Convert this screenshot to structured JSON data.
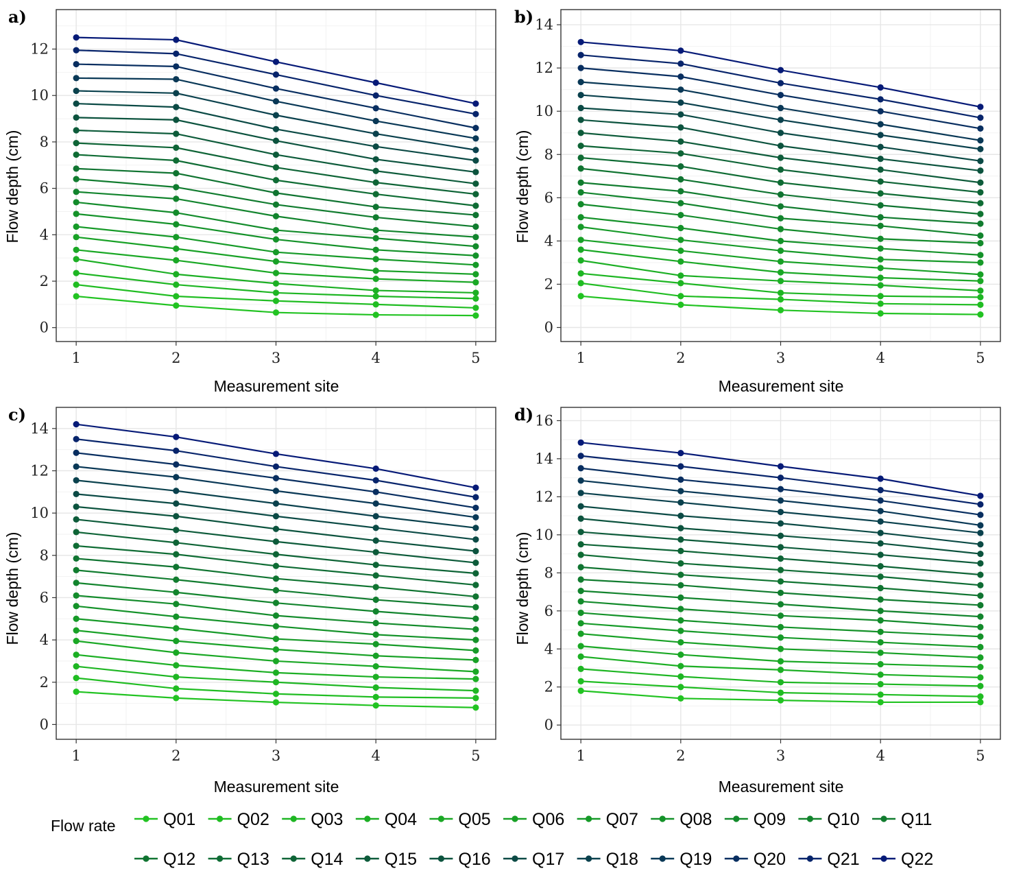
{
  "legend": {
    "title": "Flow rate"
  },
  "colors": {
    "series": [
      "#22c322",
      "#20bd22",
      "#1eb623",
      "#1caf24",
      "#1aa825",
      "#18a126",
      "#169a28",
      "#149229",
      "#138b2b",
      "#12842d",
      "#117c2f",
      "#107431",
      "#0f6c34",
      "#0e6436",
      "#0d5b3a",
      "#0c533e",
      "#0b4a45",
      "#0a414d",
      "#093856",
      "#082e60",
      "#07246b",
      "#061a77"
    ]
  },
  "chart_data": [
    {
      "panel": "a)",
      "type": "line",
      "xlabel": "Measurement site",
      "ylabel": "Flow depth (cm)",
      "x": [
        1,
        2,
        3,
        4,
        5
      ],
      "xlim": [
        0.8,
        5.2
      ],
      "ylim": [
        -0.6,
        13.7
      ],
      "yticks": [
        0,
        2,
        4,
        6,
        8,
        10,
        12
      ],
      "grid": true,
      "series": [
        {
          "name": "Q01",
          "values": [
            1.35,
            0.95,
            0.65,
            0.55,
            0.52
          ]
        },
        {
          "name": "Q02",
          "values": [
            1.85,
            1.35,
            1.15,
            1.0,
            0.85
          ]
        },
        {
          "name": "Q03",
          "values": [
            2.35,
            1.85,
            1.5,
            1.35,
            1.25
          ]
        },
        {
          "name": "Q04",
          "values": [
            2.95,
            2.3,
            1.9,
            1.6,
            1.5
          ]
        },
        {
          "name": "Q05",
          "values": [
            3.35,
            2.9,
            2.35,
            2.1,
            1.95
          ]
        },
        {
          "name": "Q06",
          "values": [
            3.9,
            3.4,
            2.85,
            2.45,
            2.3
          ]
        },
        {
          "name": "Q07",
          "values": [
            4.35,
            3.9,
            3.25,
            2.95,
            2.7
          ]
        },
        {
          "name": "Q08",
          "values": [
            4.9,
            4.45,
            3.8,
            3.35,
            3.1
          ]
        },
        {
          "name": "Q09",
          "values": [
            5.4,
            4.95,
            4.2,
            3.85,
            3.5
          ]
        },
        {
          "name": "Q10",
          "values": [
            5.85,
            5.55,
            4.8,
            4.2,
            3.9
          ]
        },
        {
          "name": "Q11",
          "values": [
            6.4,
            6.05,
            5.3,
            4.75,
            4.35
          ]
        },
        {
          "name": "Q12",
          "values": [
            6.85,
            6.65,
            5.8,
            5.2,
            4.85
          ]
        },
        {
          "name": "Q13",
          "values": [
            7.45,
            7.2,
            6.35,
            5.75,
            5.25
          ]
        },
        {
          "name": "Q14",
          "values": [
            7.95,
            7.75,
            6.9,
            6.25,
            5.75
          ]
        },
        {
          "name": "Q15",
          "values": [
            8.5,
            8.35,
            7.45,
            6.75,
            6.2
          ]
        },
        {
          "name": "Q16",
          "values": [
            9.05,
            8.95,
            8.05,
            7.25,
            6.7
          ]
        },
        {
          "name": "Q17",
          "values": [
            9.65,
            9.5,
            8.55,
            7.8,
            7.2
          ]
        },
        {
          "name": "Q18",
          "values": [
            10.2,
            10.1,
            9.15,
            8.35,
            7.65
          ]
        },
        {
          "name": "Q19",
          "values": [
            10.75,
            10.7,
            9.75,
            8.9,
            8.15
          ]
        },
        {
          "name": "Q20",
          "values": [
            11.35,
            11.25,
            10.3,
            9.45,
            8.6
          ]
        },
        {
          "name": "Q21",
          "values": [
            11.95,
            11.8,
            10.9,
            10.0,
            9.2
          ]
        },
        {
          "name": "Q22",
          "values": [
            12.5,
            12.4,
            11.45,
            10.55,
            9.65
          ]
        }
      ]
    },
    {
      "panel": "b)",
      "type": "line",
      "xlabel": "Measurement site",
      "ylabel": "Flow depth (cm)",
      "x": [
        1,
        2,
        3,
        4,
        5
      ],
      "xlim": [
        0.8,
        5.2
      ],
      "ylim": [
        -0.65,
        14.7
      ],
      "yticks": [
        0,
        2,
        4,
        6,
        8,
        10,
        12,
        14
      ],
      "grid": true,
      "series": [
        {
          "name": "Q01",
          "values": [
            1.45,
            1.05,
            0.8,
            0.65,
            0.6
          ]
        },
        {
          "name": "Q02",
          "values": [
            2.05,
            1.45,
            1.3,
            1.1,
            1.05
          ]
        },
        {
          "name": "Q03",
          "values": [
            2.5,
            2.05,
            1.6,
            1.45,
            1.4
          ]
        },
        {
          "name": "Q04",
          "values": [
            3.1,
            2.4,
            2.15,
            1.95,
            1.7
          ]
        },
        {
          "name": "Q05",
          "values": [
            3.6,
            3.05,
            2.55,
            2.3,
            2.15
          ]
        },
        {
          "name": "Q06",
          "values": [
            4.05,
            3.55,
            3.05,
            2.75,
            2.45
          ]
        },
        {
          "name": "Q07",
          "values": [
            4.65,
            4.05,
            3.55,
            3.15,
            3.0
          ]
        },
        {
          "name": "Q08",
          "values": [
            5.1,
            4.6,
            4.0,
            3.65,
            3.35
          ]
        },
        {
          "name": "Q09",
          "values": [
            5.7,
            5.2,
            4.55,
            4.1,
            3.9
          ]
        },
        {
          "name": "Q10",
          "values": [
            6.25,
            5.75,
            5.05,
            4.7,
            4.25
          ]
        },
        {
          "name": "Q11",
          "values": [
            6.7,
            6.3,
            5.6,
            5.1,
            4.8
          ]
        },
        {
          "name": "Q12",
          "values": [
            7.35,
            6.85,
            6.15,
            5.65,
            5.25
          ]
        },
        {
          "name": "Q13",
          "values": [
            7.85,
            7.45,
            6.7,
            6.2,
            5.75
          ]
        },
        {
          "name": "Q14",
          "values": [
            8.4,
            8.05,
            7.3,
            6.75,
            6.25
          ]
        },
        {
          "name": "Q15",
          "values": [
            9.0,
            8.6,
            7.85,
            7.3,
            6.7
          ]
        },
        {
          "name": "Q16",
          "values": [
            9.6,
            9.25,
            8.4,
            7.8,
            7.25
          ]
        },
        {
          "name": "Q17",
          "values": [
            10.15,
            9.85,
            9.0,
            8.35,
            7.7
          ]
        },
        {
          "name": "Q18",
          "values": [
            10.75,
            10.4,
            9.6,
            8.9,
            8.25
          ]
        },
        {
          "name": "Q19",
          "values": [
            11.35,
            11.0,
            10.15,
            9.4,
            8.65
          ]
        },
        {
          "name": "Q20",
          "values": [
            12.0,
            11.6,
            10.75,
            10.0,
            9.2
          ]
        },
        {
          "name": "Q21",
          "values": [
            12.6,
            12.2,
            11.3,
            10.55,
            9.7
          ]
        },
        {
          "name": "Q22",
          "values": [
            13.2,
            12.8,
            11.9,
            11.1,
            10.2
          ]
        }
      ]
    },
    {
      "panel": "c)",
      "type": "line",
      "xlabel": "Measurement site",
      "ylabel": "Flow depth (cm)",
      "x": [
        1,
        2,
        3,
        4,
        5
      ],
      "xlim": [
        0.8,
        5.2
      ],
      "ylim": [
        -0.7,
        15.0
      ],
      "yticks": [
        0,
        2,
        4,
        6,
        8,
        10,
        12,
        14
      ],
      "grid": true,
      "series": [
        {
          "name": "Q01",
          "values": [
            1.55,
            1.25,
            1.05,
            0.9,
            0.8
          ]
        },
        {
          "name": "Q02",
          "values": [
            2.2,
            1.7,
            1.45,
            1.3,
            1.25
          ]
        },
        {
          "name": "Q03",
          "values": [
            2.75,
            2.25,
            2.0,
            1.75,
            1.6
          ]
        },
        {
          "name": "Q04",
          "values": [
            3.3,
            2.8,
            2.45,
            2.25,
            2.15
          ]
        },
        {
          "name": "Q05",
          "values": [
            3.95,
            3.4,
            3.0,
            2.75,
            2.5
          ]
        },
        {
          "name": "Q06",
          "values": [
            4.45,
            3.95,
            3.55,
            3.25,
            3.05
          ]
        },
        {
          "name": "Q07",
          "values": [
            5.0,
            4.55,
            4.05,
            3.8,
            3.5
          ]
        },
        {
          "name": "Q08",
          "values": [
            5.6,
            5.1,
            4.65,
            4.25,
            4.0
          ]
        },
        {
          "name": "Q09",
          "values": [
            6.1,
            5.7,
            5.15,
            4.8,
            4.5
          ]
        },
        {
          "name": "Q10",
          "values": [
            6.7,
            6.25,
            5.75,
            5.35,
            5.0
          ]
        },
        {
          "name": "Q11",
          "values": [
            7.3,
            6.85,
            6.35,
            5.9,
            5.55
          ]
        },
        {
          "name": "Q12",
          "values": [
            7.85,
            7.45,
            6.9,
            6.5,
            6.05
          ]
        },
        {
          "name": "Q13",
          "values": [
            8.45,
            8.05,
            7.5,
            7.05,
            6.6
          ]
        },
        {
          "name": "Q14",
          "values": [
            9.1,
            8.6,
            8.05,
            7.55,
            7.15
          ]
        },
        {
          "name": "Q15",
          "values": [
            9.7,
            9.2,
            8.65,
            8.15,
            7.65
          ]
        },
        {
          "name": "Q16",
          "values": [
            10.3,
            9.85,
            9.25,
            8.7,
            8.2
          ]
        },
        {
          "name": "Q17",
          "values": [
            10.9,
            10.45,
            9.85,
            9.3,
            8.75
          ]
        },
        {
          "name": "Q18",
          "values": [
            11.55,
            11.05,
            10.45,
            9.85,
            9.3
          ]
        },
        {
          "name": "Q19",
          "values": [
            12.2,
            11.7,
            11.05,
            10.45,
            9.8
          ]
        },
        {
          "name": "Q20",
          "values": [
            12.85,
            12.3,
            11.65,
            11.0,
            10.25
          ]
        },
        {
          "name": "Q21",
          "values": [
            13.5,
            12.95,
            12.2,
            11.55,
            10.75
          ]
        },
        {
          "name": "Q22",
          "values": [
            14.2,
            13.6,
            12.8,
            12.1,
            11.2
          ]
        }
      ]
    },
    {
      "panel": "d)",
      "type": "line",
      "xlabel": "Measurement site",
      "ylabel": "Flow depth (cm)",
      "x": [
        1,
        2,
        3,
        4,
        5
      ],
      "xlim": [
        0.8,
        5.2
      ],
      "ylim": [
        -0.75,
        16.7
      ],
      "yticks": [
        0,
        2,
        4,
        6,
        8,
        10,
        12,
        14,
        16
      ],
      "grid": true,
      "series": [
        {
          "name": "Q01",
          "values": [
            1.8,
            1.4,
            1.3,
            1.2,
            1.2
          ]
        },
        {
          "name": "Q02",
          "values": [
            2.3,
            2.0,
            1.7,
            1.6,
            1.5
          ]
        },
        {
          "name": "Q03",
          "values": [
            2.95,
            2.55,
            2.25,
            2.15,
            2.05
          ]
        },
        {
          "name": "Q04",
          "values": [
            3.6,
            3.1,
            2.9,
            2.65,
            2.5
          ]
        },
        {
          "name": "Q05",
          "values": [
            4.15,
            3.7,
            3.35,
            3.2,
            3.05
          ]
        },
        {
          "name": "Q06",
          "values": [
            4.8,
            4.35,
            4.0,
            3.8,
            3.55
          ]
        },
        {
          "name": "Q07",
          "values": [
            5.35,
            4.95,
            4.6,
            4.35,
            4.1
          ]
        },
        {
          "name": "Q08",
          "values": [
            5.9,
            5.5,
            5.15,
            4.9,
            4.65
          ]
        },
        {
          "name": "Q09",
          "values": [
            6.5,
            6.1,
            5.75,
            5.5,
            5.15
          ]
        },
        {
          "name": "Q10",
          "values": [
            7.05,
            6.7,
            6.35,
            6.0,
            5.7
          ]
        },
        {
          "name": "Q11",
          "values": [
            7.65,
            7.35,
            6.95,
            6.6,
            6.3
          ]
        },
        {
          "name": "Q12",
          "values": [
            8.3,
            7.9,
            7.55,
            7.2,
            6.8
          ]
        },
        {
          "name": "Q13",
          "values": [
            8.95,
            8.5,
            8.15,
            7.8,
            7.35
          ]
        },
        {
          "name": "Q14",
          "values": [
            9.5,
            9.15,
            8.75,
            8.35,
            7.9
          ]
        },
        {
          "name": "Q15",
          "values": [
            10.15,
            9.75,
            9.35,
            8.95,
            8.5
          ]
        },
        {
          "name": "Q16",
          "values": [
            10.85,
            10.35,
            9.95,
            9.55,
            9.0
          ]
        },
        {
          "name": "Q17",
          "values": [
            11.5,
            11.0,
            10.6,
            10.1,
            9.5
          ]
        },
        {
          "name": "Q18",
          "values": [
            12.2,
            11.7,
            11.2,
            10.7,
            10.1
          ]
        },
        {
          "name": "Q19",
          "values": [
            12.85,
            12.3,
            11.8,
            11.25,
            10.5
          ]
        },
        {
          "name": "Q20",
          "values": [
            13.5,
            12.9,
            12.4,
            11.8,
            11.05
          ]
        },
        {
          "name": "Q21",
          "values": [
            14.15,
            13.6,
            13.0,
            12.35,
            11.6
          ]
        },
        {
          "name": "Q22",
          "values": [
            14.85,
            14.3,
            13.6,
            12.95,
            12.05
          ]
        }
      ]
    }
  ]
}
